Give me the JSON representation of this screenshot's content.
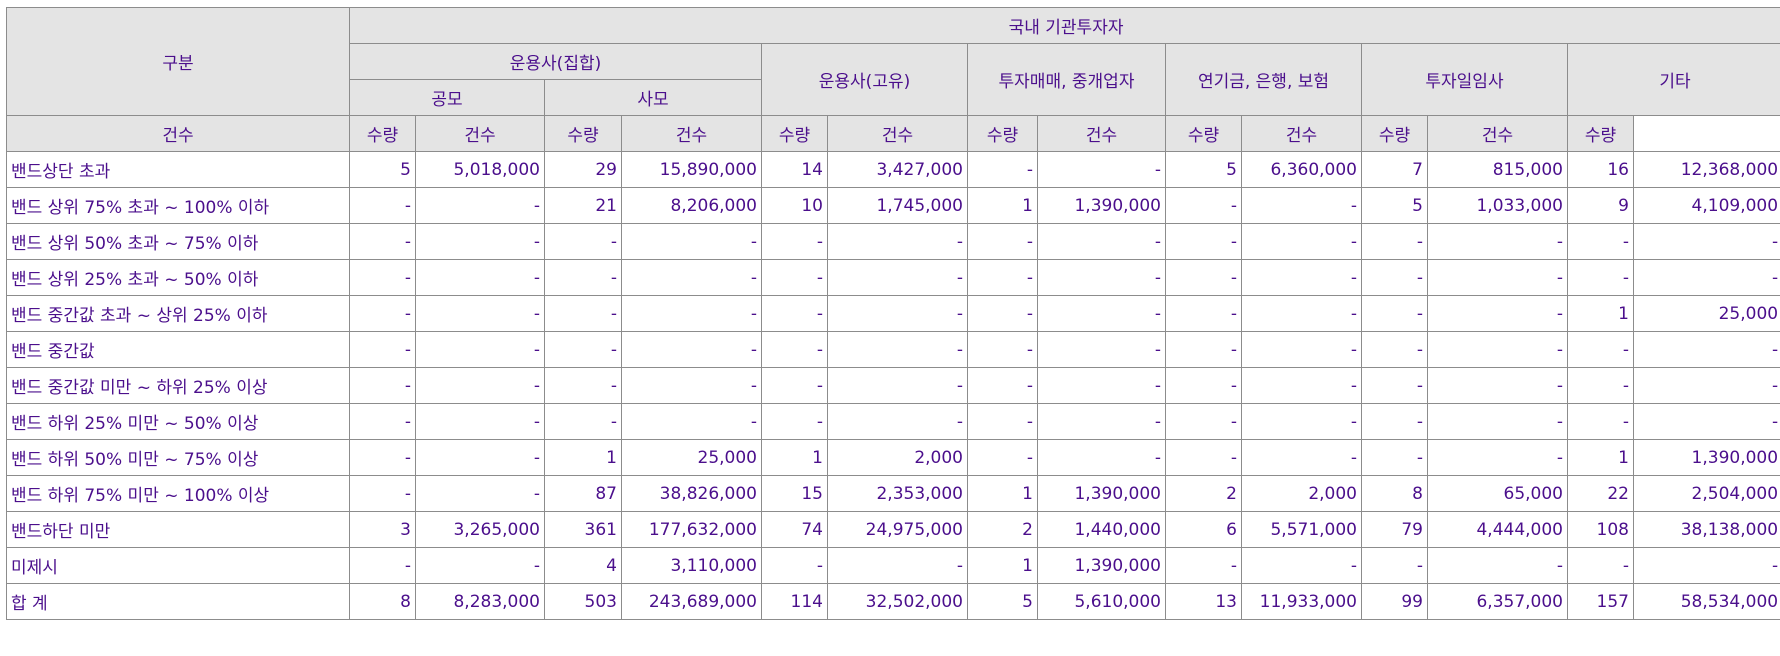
{
  "header": {
    "category": "구분",
    "domestic_institutional": "국내 기관투자자",
    "mgmt_collective": "운용사(집합)",
    "public_offer": "공모",
    "private_offer": "사모",
    "mgmt_proprietary": "운용사(고유)",
    "brokers": "투자매매, 중개업자",
    "pension_bank_insurance": "연기금, 은행, 보험",
    "discretionary": "투자일임사",
    "other": "기타",
    "count_label": "건수",
    "quantity_label": "수량"
  },
  "rows": [
    {
      "label": "밴드상단 초과",
      "cells": [
        "5",
        "5,018,000",
        "29",
        "15,890,000",
        "14",
        "3,427,000",
        "-",
        "-",
        "5",
        "6,360,000",
        "7",
        "815,000",
        "16",
        "12,368,000"
      ]
    },
    {
      "label": "밴드 상위 75% 초과 ~ 100% 이하",
      "cells": [
        "-",
        "-",
        "21",
        "8,206,000",
        "10",
        "1,745,000",
        "1",
        "1,390,000",
        "-",
        "-",
        "5",
        "1,033,000",
        "9",
        "4,109,000"
      ]
    },
    {
      "label": "밴드 상위 50% 초과 ~ 75% 이하",
      "cells": [
        "-",
        "-",
        "-",
        "-",
        "-",
        "-",
        "-",
        "-",
        "-",
        "-",
        "-",
        "-",
        "-",
        "-"
      ]
    },
    {
      "label": "밴드 상위 25% 초과 ~ 50% 이하",
      "cells": [
        "-",
        "-",
        "-",
        "-",
        "-",
        "-",
        "-",
        "-",
        "-",
        "-",
        "-",
        "-",
        "-",
        "-"
      ]
    },
    {
      "label": "밴드 중간값 초과 ~ 상위 25% 이하",
      "cells": [
        "-",
        "-",
        "-",
        "-",
        "-",
        "-",
        "-",
        "-",
        "-",
        "-",
        "-",
        "-",
        "1",
        "25,000"
      ]
    },
    {
      "label": "밴드 중간값",
      "cells": [
        "-",
        "-",
        "-",
        "-",
        "-",
        "-",
        "-",
        "-",
        "-",
        "-",
        "-",
        "-",
        "-",
        "-"
      ]
    },
    {
      "label": "밴드 중간값 미만 ~ 하위 25% 이상",
      "cells": [
        "-",
        "-",
        "-",
        "-",
        "-",
        "-",
        "-",
        "-",
        "-",
        "-",
        "-",
        "-",
        "-",
        "-"
      ]
    },
    {
      "label": "밴드 하위 25% 미만 ~ 50% 이상",
      "cells": [
        "-",
        "-",
        "-",
        "-",
        "-",
        "-",
        "-",
        "-",
        "-",
        "-",
        "-",
        "-",
        "-",
        "-"
      ]
    },
    {
      "label": "밴드 하위 50% 미만 ~ 75% 이상",
      "cells": [
        "-",
        "-",
        "1",
        "25,000",
        "1",
        "2,000",
        "-",
        "-",
        "-",
        "-",
        "-",
        "-",
        "1",
        "1,390,000"
      ]
    },
    {
      "label": "밴드 하위 75% 미만 ~ 100% 이상",
      "cells": [
        "-",
        "-",
        "87",
        "38,826,000",
        "15",
        "2,353,000",
        "1",
        "1,390,000",
        "2",
        "2,000",
        "8",
        "65,000",
        "22",
        "2,504,000"
      ]
    },
    {
      "label": "밴드하단 미만",
      "cells": [
        "3",
        "3,265,000",
        "361",
        "177,632,000",
        "74",
        "24,975,000",
        "2",
        "1,440,000",
        "6",
        "5,571,000",
        "79",
        "4,444,000",
        "108",
        "38,138,000"
      ]
    },
    {
      "label": "미제시",
      "cells": [
        "-",
        "-",
        "4",
        "3,110,000",
        "-",
        "-",
        "1",
        "1,390,000",
        "-",
        "-",
        "-",
        "-",
        "-",
        "-"
      ]
    },
    {
      "label": "합 계",
      "cells": [
        "8",
        "8,283,000",
        "503",
        "243,689,000",
        "114",
        "32,502,000",
        "5",
        "5,610,000",
        "13",
        "11,933,000",
        "99",
        "6,357,000",
        "157",
        "58,534,000"
      ]
    }
  ]
}
